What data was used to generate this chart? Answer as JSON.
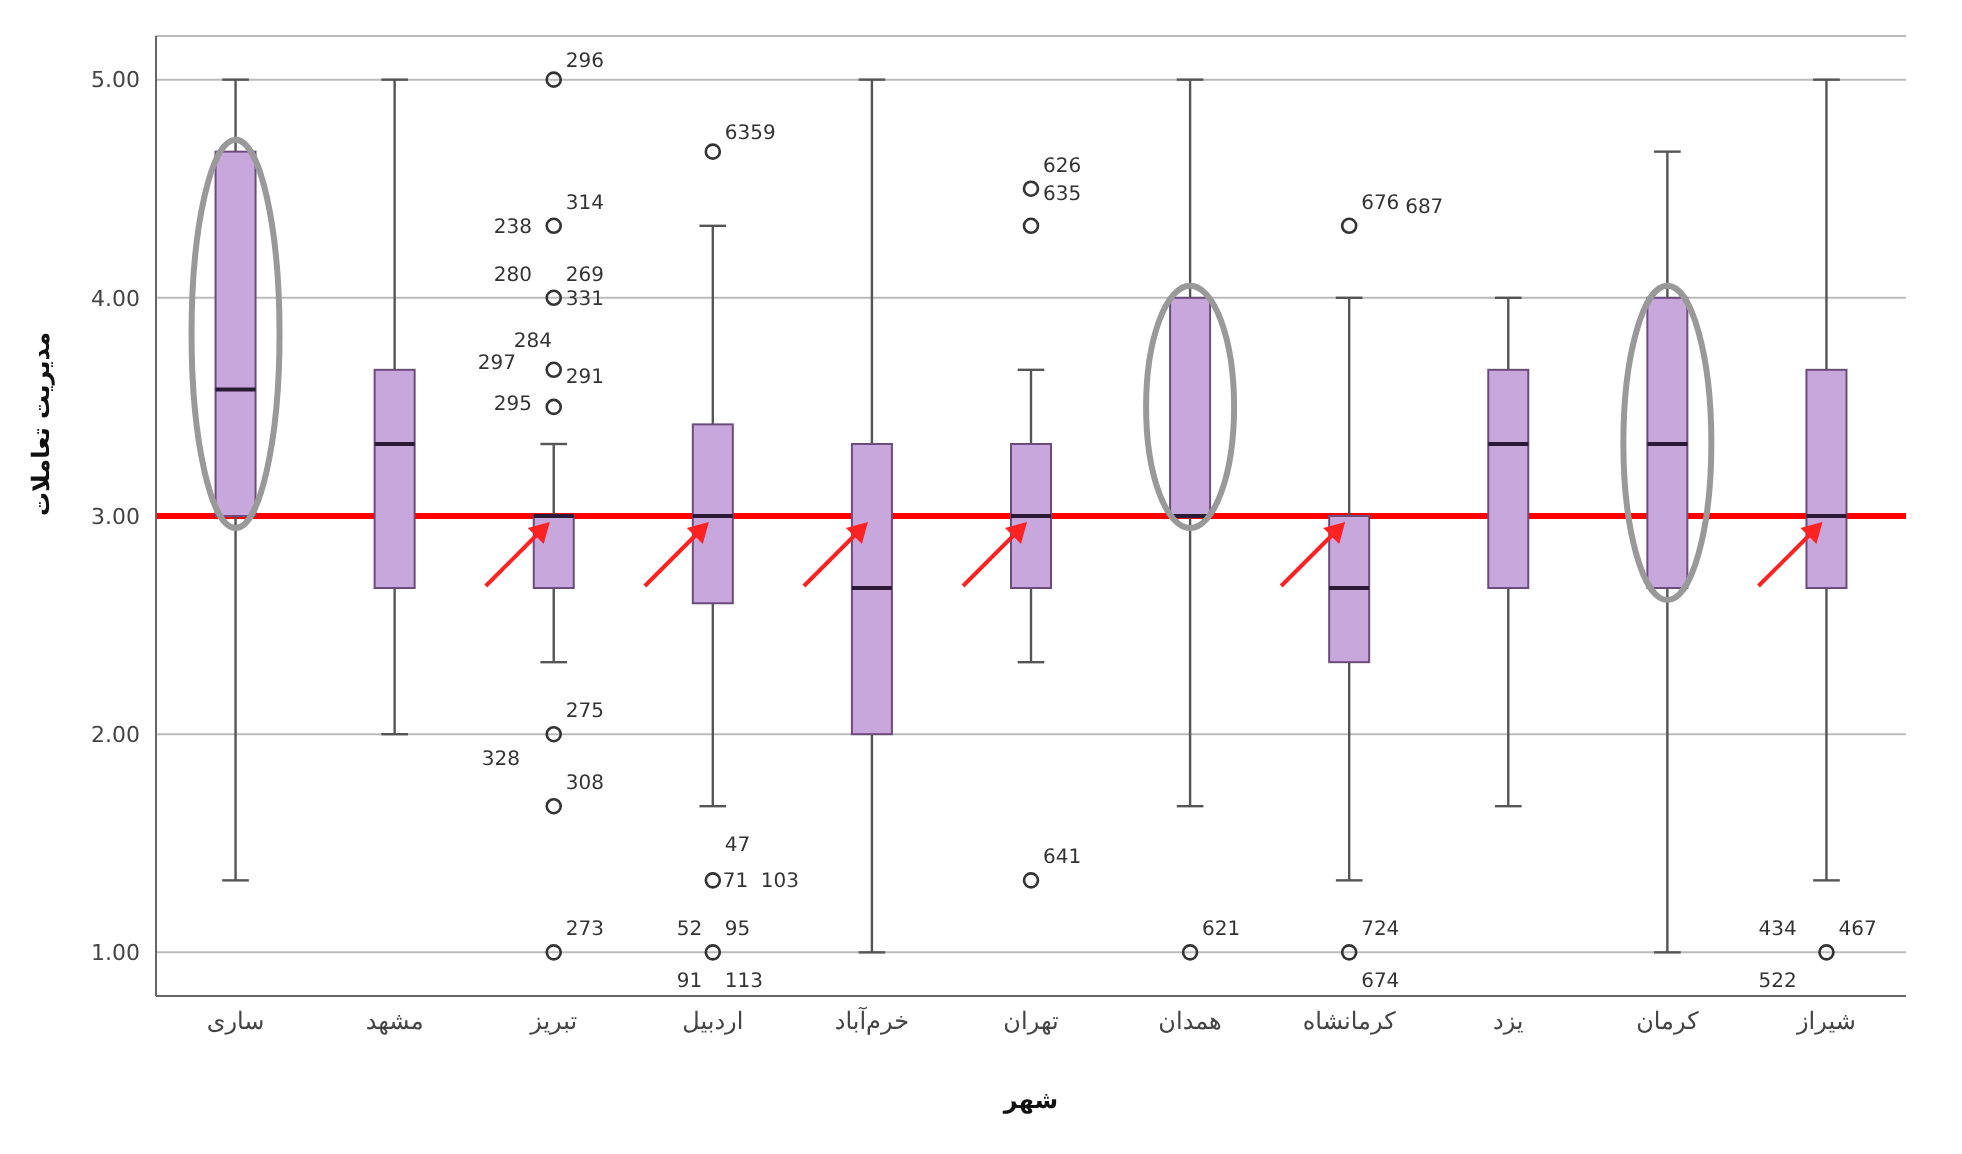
{
  "chart_data": {
    "type": "box",
    "xlabel": "شهر",
    "ylabel": "مدیریت تعاملات",
    "categories": [
      "ساری",
      "مشهد",
      "تبریز",
      "اردبیل",
      "خرم‌آباد",
      "تهران",
      "همدان",
      "کرمانشاه",
      "یزد",
      "کرمان",
      "شیراز"
    ],
    "boxes": [
      {
        "low": 1.33,
        "q1": 3.0,
        "median": 3.58,
        "q3": 4.67,
        "high": 5.0
      },
      {
        "low": 2.0,
        "q1": 2.67,
        "median": 3.33,
        "q3": 3.67,
        "high": 5.0
      },
      {
        "low": 2.33,
        "q1": 2.67,
        "median": 3.0,
        "q3": 3.0,
        "high": 3.33,
        "outliers": [
          5.0,
          4.33,
          4.0,
          3.67,
          3.5,
          2.0,
          1.67,
          1.0
        ]
      },
      {
        "low": 1.67,
        "q1": 2.6,
        "median": 3.0,
        "q3": 3.42,
        "high": 4.33,
        "outliers": [
          4.67,
          1.33,
          1.0
        ]
      },
      {
        "low": 1.0,
        "q1": 2.0,
        "median": 2.67,
        "q3": 3.33,
        "high": 5.0
      },
      {
        "low": 2.33,
        "q1": 2.67,
        "median": 3.0,
        "q3": 3.33,
        "high": 3.67,
        "outliers": [
          4.5,
          4.33,
          1.33
        ]
      },
      {
        "low": 1.67,
        "q1": 3.0,
        "median": 3.0,
        "q3": 4.0,
        "high": 5.0,
        "outliers": [
          1.0
        ]
      },
      {
        "low": 1.33,
        "q1": 2.33,
        "median": 2.67,
        "q3": 3.0,
        "high": 4.0,
        "outliers": [
          4.33,
          1.0
        ]
      },
      {
        "low": 1.67,
        "q1": 2.67,
        "median": 3.33,
        "q3": 3.67,
        "high": 4.0
      },
      {
        "low": 1.0,
        "q1": 2.67,
        "median": 3.33,
        "q3": 4.0,
        "high": 4.67
      },
      {
        "low": 1.33,
        "q1": 2.67,
        "median": 3.0,
        "q3": 3.67,
        "high": 5.0,
        "outliers": [
          1.0
        ]
      }
    ],
    "color": "#c8a8dc",
    "ylim": [
      0.8,
      5.2
    ],
    "yticks": [
      {
        "value": 1,
        "label": "1.00"
      },
      {
        "value": 2,
        "label": "2.00"
      },
      {
        "value": 3,
        "label": "3.00"
      },
      {
        "value": 4,
        "label": "4.00"
      },
      {
        "value": 5,
        "label": "5.00"
      }
    ],
    "grid": "y",
    "legend": false,
    "marker": "circle",
    "ref_lines": [
      {
        "axis": "y",
        "value": 3,
        "color": "#ff0000"
      }
    ],
    "annotations": [
      "296",
      "314",
      "238",
      "280",
      "269",
      "331",
      "297",
      "284",
      "291",
      "295",
      "275",
      "328",
      "308",
      "273",
      "6359",
      "47",
      "71",
      "103",
      "52",
      "95",
      "91",
      "113",
      "626",
      "635",
      "641",
      "621",
      "676",
      "687",
      "724",
      "674",
      "434",
      "467",
      "522"
    ]
  }
}
